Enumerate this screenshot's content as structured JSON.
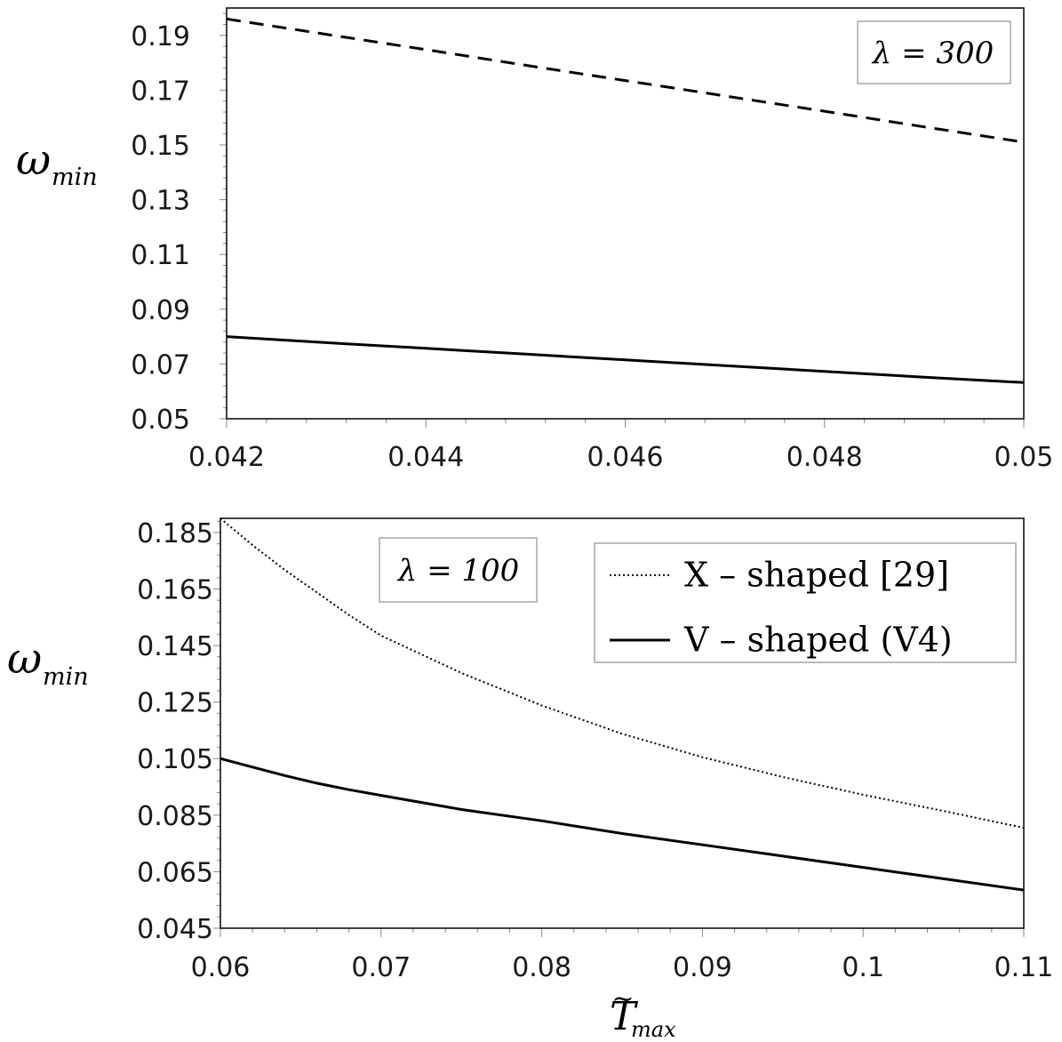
{
  "chart_data": [
    {
      "type": "line",
      "annotation": "λ = 300",
      "ylabel": "ω",
      "ylabel_sub": "min",
      "xlim": [
        0.042,
        0.05
      ],
      "ylim": [
        0.05,
        0.2
      ],
      "x_ticks": [
        "0.042",
        "0.044",
        "0.046",
        "0.048",
        "0.05"
      ],
      "y_ticks": [
        "0.05",
        "0.07",
        "0.09",
        "0.11",
        "0.13",
        "0.15",
        "0.17",
        "0.19"
      ],
      "series": [
        {
          "style": "dashed",
          "color": "#000000",
          "x": [
            0.042,
            0.043,
            0.044,
            0.045,
            0.046,
            0.047,
            0.048,
            0.049,
            0.05
          ],
          "y": [
            0.196,
            0.1904,
            0.1848,
            0.1791,
            0.1735,
            0.1679,
            0.1623,
            0.1566,
            0.151
          ]
        },
        {
          "style": "solid",
          "color": "#000000",
          "x": [
            0.042,
            0.043,
            0.044,
            0.045,
            0.046,
            0.047,
            0.048,
            0.049,
            0.05
          ],
          "y": [
            0.08,
            0.0778,
            0.0757,
            0.0736,
            0.0715,
            0.0694,
            0.0673,
            0.0652,
            0.0632
          ]
        }
      ]
    },
    {
      "type": "line",
      "annotation": "λ = 100",
      "ylabel": "ω",
      "ylabel_sub": "min",
      "xlabel": "T",
      "xlabel_accent": "~",
      "xlabel_sub": "max",
      "xlim": [
        0.06,
        0.11
      ],
      "ylim": [
        0.045,
        0.19
      ],
      "x_ticks": [
        "0.06",
        "0.07",
        "0.08",
        "0.09",
        "0.1",
        "0.11"
      ],
      "y_ticks": [
        "0.045",
        "0.065",
        "0.085",
        "0.105",
        "0.125",
        "0.145",
        "0.165",
        "0.185"
      ],
      "legend_position": "top-right",
      "series": [
        {
          "name": "X – shaped [29]",
          "style": "dotted",
          "color": "#000000",
          "x": [
            0.06,
            0.062,
            0.064,
            0.066,
            0.068,
            0.07,
            0.075,
            0.08,
            0.085,
            0.09,
            0.095,
            0.1,
            0.105,
            0.11
          ],
          "y": [
            0.19,
            0.1805,
            0.1718,
            0.1638,
            0.1558,
            0.1485,
            0.1353,
            0.1238,
            0.1138,
            0.1055,
            0.0985,
            0.0922,
            0.0865,
            0.0805
          ]
        },
        {
          "name": "V – shaped (V4)",
          "style": "solid",
          "color": "#000000",
          "x": [
            0.06,
            0.062,
            0.064,
            0.066,
            0.068,
            0.07,
            0.075,
            0.08,
            0.085,
            0.09,
            0.095,
            0.1,
            0.105,
            0.11
          ],
          "y": [
            0.105,
            0.102,
            0.099,
            0.0963,
            0.094,
            0.092,
            0.087,
            0.083,
            0.0785,
            0.0745,
            0.0705,
            0.0665,
            0.0625,
            0.0585
          ]
        }
      ]
    }
  ]
}
